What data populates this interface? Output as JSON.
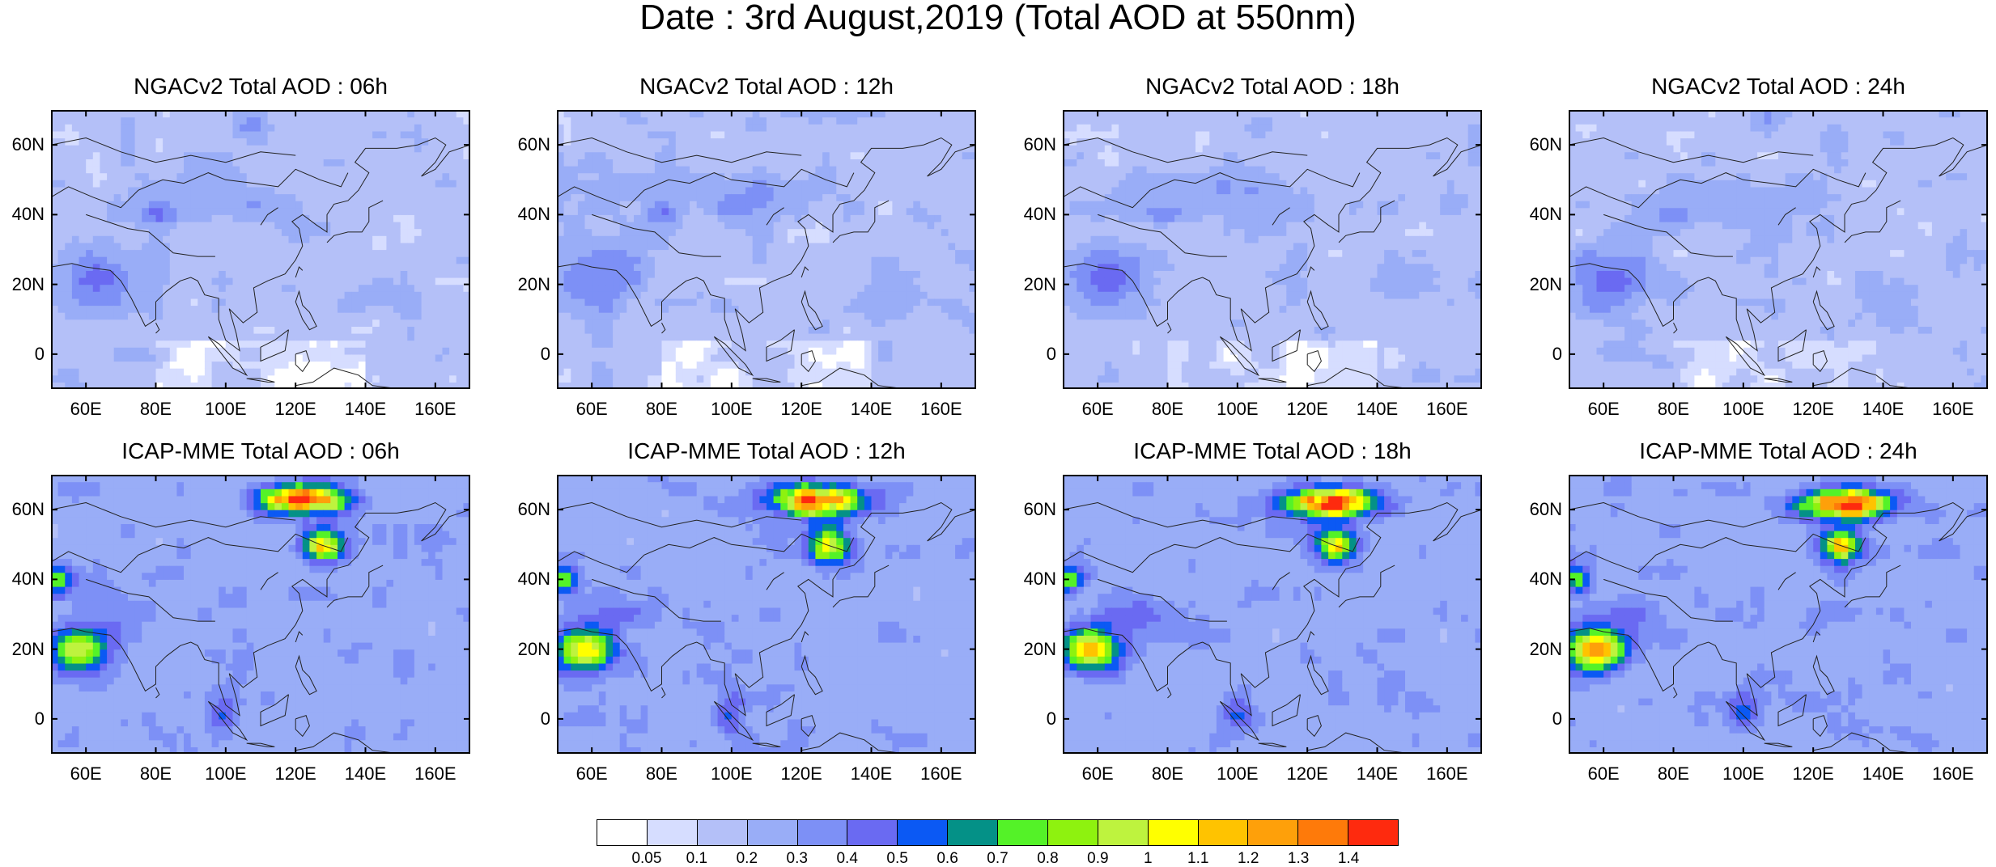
{
  "title": "Date : 3rd August,2019 (Total AOD at 550nm)",
  "panels": [
    {
      "title": "NGACv2 Total AOD : 06h",
      "model": "ngac"
    },
    {
      "title": "NGACv2 Total AOD : 12h",
      "model": "ngac"
    },
    {
      "title": "NGACv2 Total AOD : 18h",
      "model": "ngac"
    },
    {
      "title": "NGACv2 Total AOD : 24h",
      "model": "ngac"
    },
    {
      "title": "ICAP-MME Total AOD : 06h",
      "model": "icap"
    },
    {
      "title": "ICAP-MME Total AOD : 12h",
      "model": "icap"
    },
    {
      "title": "ICAP-MME Total AOD : 18h",
      "model": "icap"
    },
    {
      "title": "ICAP-MME Total AOD : 24h",
      "model": "icap"
    }
  ],
  "map_extent": {
    "lon": [
      50,
      170
    ],
    "lat": [
      -10,
      70
    ]
  },
  "lat_ticks": [
    {
      "value": 60,
      "label": "60N"
    },
    {
      "value": 40,
      "label": "40N"
    },
    {
      "value": 20,
      "label": "20N"
    },
    {
      "value": 0,
      "label": "0"
    }
  ],
  "lon_ticks": [
    {
      "value": 60,
      "label": "60E"
    },
    {
      "value": 80,
      "label": "80E"
    },
    {
      "value": 100,
      "label": "100E"
    },
    {
      "value": 120,
      "label": "120E"
    },
    {
      "value": 140,
      "label": "140E"
    },
    {
      "value": 160,
      "label": "160E"
    }
  ],
  "colorbar": {
    "colors": [
      "#ffffff",
      "#d6ddff",
      "#b4c0f8",
      "#99adf7",
      "#7d90f6",
      "#6a6af2",
      "#0b59f4",
      "#049187",
      "#54f228",
      "#8ef20f",
      "#bef33e",
      "#ffff00",
      "#ffc300",
      "#fea00a",
      "#fe7a0a",
      "#fe2a0e"
    ],
    "labels": [
      "0.05",
      "0.1",
      "0.2",
      "0.3",
      "0.4",
      "0.5",
      "0.6",
      "0.7",
      "0.8",
      "0.9",
      "1",
      "1.1",
      "1.2",
      "1.3",
      "1.4"
    ]
  }
}
